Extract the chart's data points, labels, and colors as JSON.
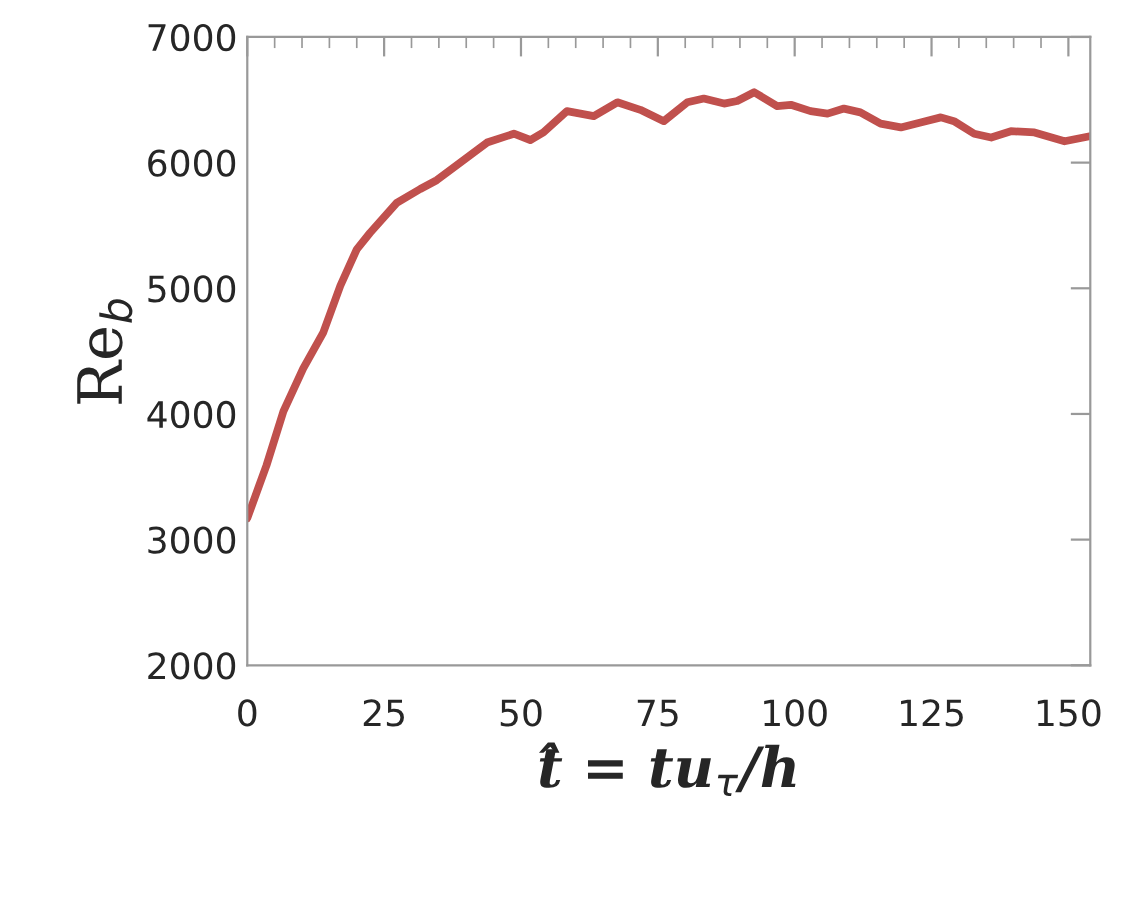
{
  "chart_data": {
    "type": "line",
    "xlabel": "t̂ = tu$_{τ}$/h",
    "ylabel": "Re$_{b}$",
    "x": [
      0,
      3.5,
      6.6,
      10.2,
      13.9,
      17,
      20,
      22.4,
      27.3,
      31.6,
      34.6,
      38.9,
      43.8,
      48.7,
      51.7,
      54.1,
      58.4,
      63.3,
      67.6,
      71.8,
      76.1,
      80.4,
      83.4,
      87.1,
      89.5,
      92.6,
      96.8,
      99.3,
      102.9,
      106,
      109,
      112,
      115.7,
      119.4,
      123,
      126.7,
      129.1,
      132.8,
      135.9,
      139.5,
      143.8,
      149.3,
      153.9
    ],
    "series": [
      {
        "color": "#c0504d",
        "values": [
          3170,
          3590,
          4020,
          4360,
          4650,
          5020,
          5310,
          5440,
          5680,
          5790,
          5860,
          6000,
          6160,
          6230,
          6180,
          6240,
          6410,
          6370,
          6480,
          6420,
          6330,
          6480,
          6510,
          6470,
          6490,
          6560,
          6450,
          6460,
          6410,
          6390,
          6430,
          6400,
          6310,
          6280,
          6320,
          6360,
          6330,
          6230,
          6200,
          6250,
          6240,
          6170,
          6210
        ]
      }
    ],
    "xlim": [
      0,
      154
    ],
    "ylim": [
      2000,
      7000
    ],
    "xticks": [
      0,
      25,
      50,
      75,
      100,
      125,
      150
    ],
    "yticks": [
      2000,
      3000,
      4000,
      5000,
      6000,
      7000
    ],
    "grid": false,
    "legend": false,
    "marker": "none",
    "line_style": "solid"
  }
}
